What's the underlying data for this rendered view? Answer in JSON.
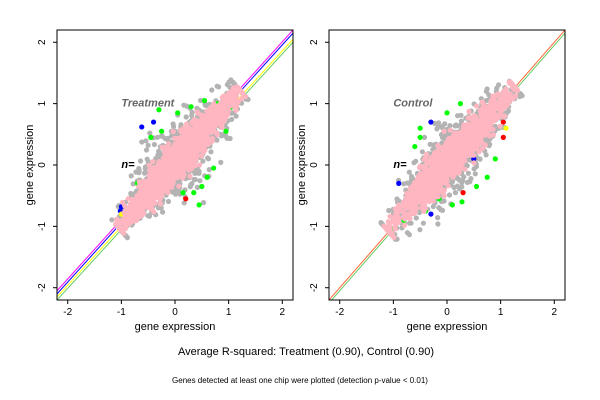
{
  "figure": {
    "caption_main": "Average R-squared: Treatment (0.90), Control (0.90)",
    "caption_sub": "Genes detected at least one chip were plotted (detection p-value < 0.01)"
  },
  "colors": {
    "bulk": "#ffb6c1",
    "halo": "#b3b3b3",
    "outlier_green": "#00ff00",
    "outlier_blue": "#0000ff",
    "outlier_red": "#ff0000",
    "outlier_yellow": "#ffff00"
  },
  "chart_data": [
    {
      "type": "scatter",
      "title": "Treatment",
      "annotation": "n=",
      "xlabel": "gene expression",
      "ylabel": "gene expression",
      "xlim": [
        -2.2,
        2.2
      ],
      "ylim": [
        -2.2,
        2.2
      ],
      "xticks": [
        -2,
        -1,
        0,
        1,
        2
      ],
      "yticks": [
        -2,
        -1,
        0,
        1,
        2
      ],
      "grid": false,
      "point_cloud": {
        "shape": "elongated along the diagonal",
        "x_range": [
          -1.05,
          1.2
        ],
        "y_range": [
          -1.15,
          1.25
        ],
        "layers": [
          "halo",
          "outlier points",
          "bulk"
        ]
      },
      "fit_lines": [
        {
          "color": "#ff00ff",
          "x": [
            -2.2,
            2.2
          ],
          "y": [
            -2.05,
            2.2
          ]
        },
        {
          "color": "#0000ff",
          "x": [
            -2.2,
            2.2
          ],
          "y": [
            -2.1,
            2.15
          ]
        },
        {
          "color": "#ffff00",
          "x": [
            -2.2,
            2.2
          ],
          "y": [
            -2.15,
            2.05
          ]
        },
        {
          "color": "#66cc66",
          "x": [
            -2.2,
            2.2
          ],
          "y": [
            -2.2,
            2.0
          ]
        }
      ],
      "highlight_points": [
        {
          "x": -0.62,
          "y": 0.62,
          "color": "#0000ff"
        },
        {
          "x": -0.4,
          "y": 0.7,
          "color": "#0000ff"
        },
        {
          "x": -0.25,
          "y": 0.55,
          "color": "#00ff00"
        },
        {
          "x": -0.45,
          "y": 0.45,
          "color": "#00ff00"
        },
        {
          "x": -1.0,
          "y": -0.68,
          "color": "#0000ff"
        },
        {
          "x": -1.02,
          "y": -0.75,
          "color": "#0000ff"
        },
        {
          "x": -1.0,
          "y": -0.8,
          "color": "#ffff00"
        },
        {
          "x": -0.95,
          "y": -0.9,
          "color": "#00ff00"
        },
        {
          "x": 0.2,
          "y": -0.55,
          "color": "#ff0000"
        },
        {
          "x": 0.35,
          "y": -0.45,
          "color": "#00ff00"
        },
        {
          "x": 0.5,
          "y": -0.35,
          "color": "#00ff00"
        },
        {
          "x": 0.6,
          "y": -0.2,
          "color": "#00ff00"
        },
        {
          "x": 0.72,
          "y": -0.05,
          "color": "#00ff00"
        },
        {
          "x": 0.15,
          "y": -0.45,
          "color": "#00ff00"
        },
        {
          "x": -0.15,
          "y": -0.4,
          "color": "#00ff00"
        },
        {
          "x": 0.05,
          "y": 0.85,
          "color": "#00ff00"
        },
        {
          "x": 0.3,
          "y": 0.95,
          "color": "#00ff00"
        },
        {
          "x": 0.55,
          "y": 1.05,
          "color": "#00ff00"
        },
        {
          "x": 0.8,
          "y": 1.0,
          "color": "#00ff00"
        },
        {
          "x": 1.05,
          "y": 0.95,
          "color": "#00ff00"
        },
        {
          "x": -0.3,
          "y": 0.9,
          "color": "#00ff00"
        },
        {
          "x": 0.45,
          "y": -0.65,
          "color": "#00ff00"
        },
        {
          "x": -0.7,
          "y": -0.3,
          "color": "#00ff00"
        },
        {
          "x": 0.95,
          "y": 0.55,
          "color": "#00ff00"
        }
      ]
    },
    {
      "type": "scatter",
      "title": "Control",
      "annotation": "n=",
      "xlabel": "gene expression",
      "ylabel": "gene expression",
      "xlim": [
        -2.2,
        2.2
      ],
      "ylim": [
        -2.2,
        2.2
      ],
      "xticks": [
        -2,
        -1,
        0,
        1,
        2
      ],
      "yticks": [
        -2,
        -1,
        0,
        1,
        2
      ],
      "grid": false,
      "point_cloud": {
        "shape": "elongated along the diagonal",
        "x_range": [
          -1.1,
          1.25
        ],
        "y_range": [
          -1.2,
          1.25
        ],
        "layers": [
          "halo",
          "outlier points",
          "bulk"
        ]
      },
      "fit_lines": [
        {
          "color": "#ff6633",
          "x": [
            -2.2,
            2.2
          ],
          "y": [
            -2.2,
            2.2
          ]
        },
        {
          "color": "#66cc66",
          "x": [
            -2.2,
            2.2
          ],
          "y": [
            -2.25,
            2.15
          ]
        }
      ],
      "highlight_points": [
        {
          "x": 1.05,
          "y": 0.7,
          "color": "#ff0000"
        },
        {
          "x": 1.05,
          "y": 0.45,
          "color": "#ff0000"
        },
        {
          "x": 1.1,
          "y": 0.6,
          "color": "#ffff00"
        },
        {
          "x": 0.3,
          "y": -0.45,
          "color": "#ff0000"
        },
        {
          "x": 0.28,
          "y": -0.6,
          "color": "#00ff00"
        },
        {
          "x": -0.3,
          "y": 0.7,
          "color": "#0000ff"
        },
        {
          "x": -0.3,
          "y": -0.8,
          "color": "#0000ff"
        },
        {
          "x": -0.9,
          "y": -0.3,
          "color": "#0000ff"
        },
        {
          "x": 0.5,
          "y": 0.1,
          "color": "#0000ff"
        },
        {
          "x": 0.75,
          "y": -0.2,
          "color": "#00ff00"
        },
        {
          "x": 0.9,
          "y": 0.1,
          "color": "#00ff00"
        },
        {
          "x": 0.55,
          "y": -0.35,
          "color": "#00ff00"
        },
        {
          "x": -0.5,
          "y": 0.6,
          "color": "#00ff00"
        },
        {
          "x": -0.5,
          "y": 0.45,
          "color": "#00ff00"
        },
        {
          "x": -0.6,
          "y": 0.3,
          "color": "#00ff00"
        },
        {
          "x": 0.0,
          "y": 0.85,
          "color": "#00ff00"
        },
        {
          "x": 0.25,
          "y": 1.0,
          "color": "#00ff00"
        },
        {
          "x": -0.15,
          "y": -0.55,
          "color": "#00ff00"
        },
        {
          "x": 0.1,
          "y": -0.65,
          "color": "#00ff00"
        },
        {
          "x": -0.8,
          "y": -0.9,
          "color": "#00ff00"
        },
        {
          "x": -1.05,
          "y": -1.05,
          "color": "#00ff00"
        },
        {
          "x": -0.4,
          "y": -0.75,
          "color": "#00ff00"
        },
        {
          "x": 0.7,
          "y": 0.95,
          "color": "#00ff00"
        }
      ]
    }
  ]
}
